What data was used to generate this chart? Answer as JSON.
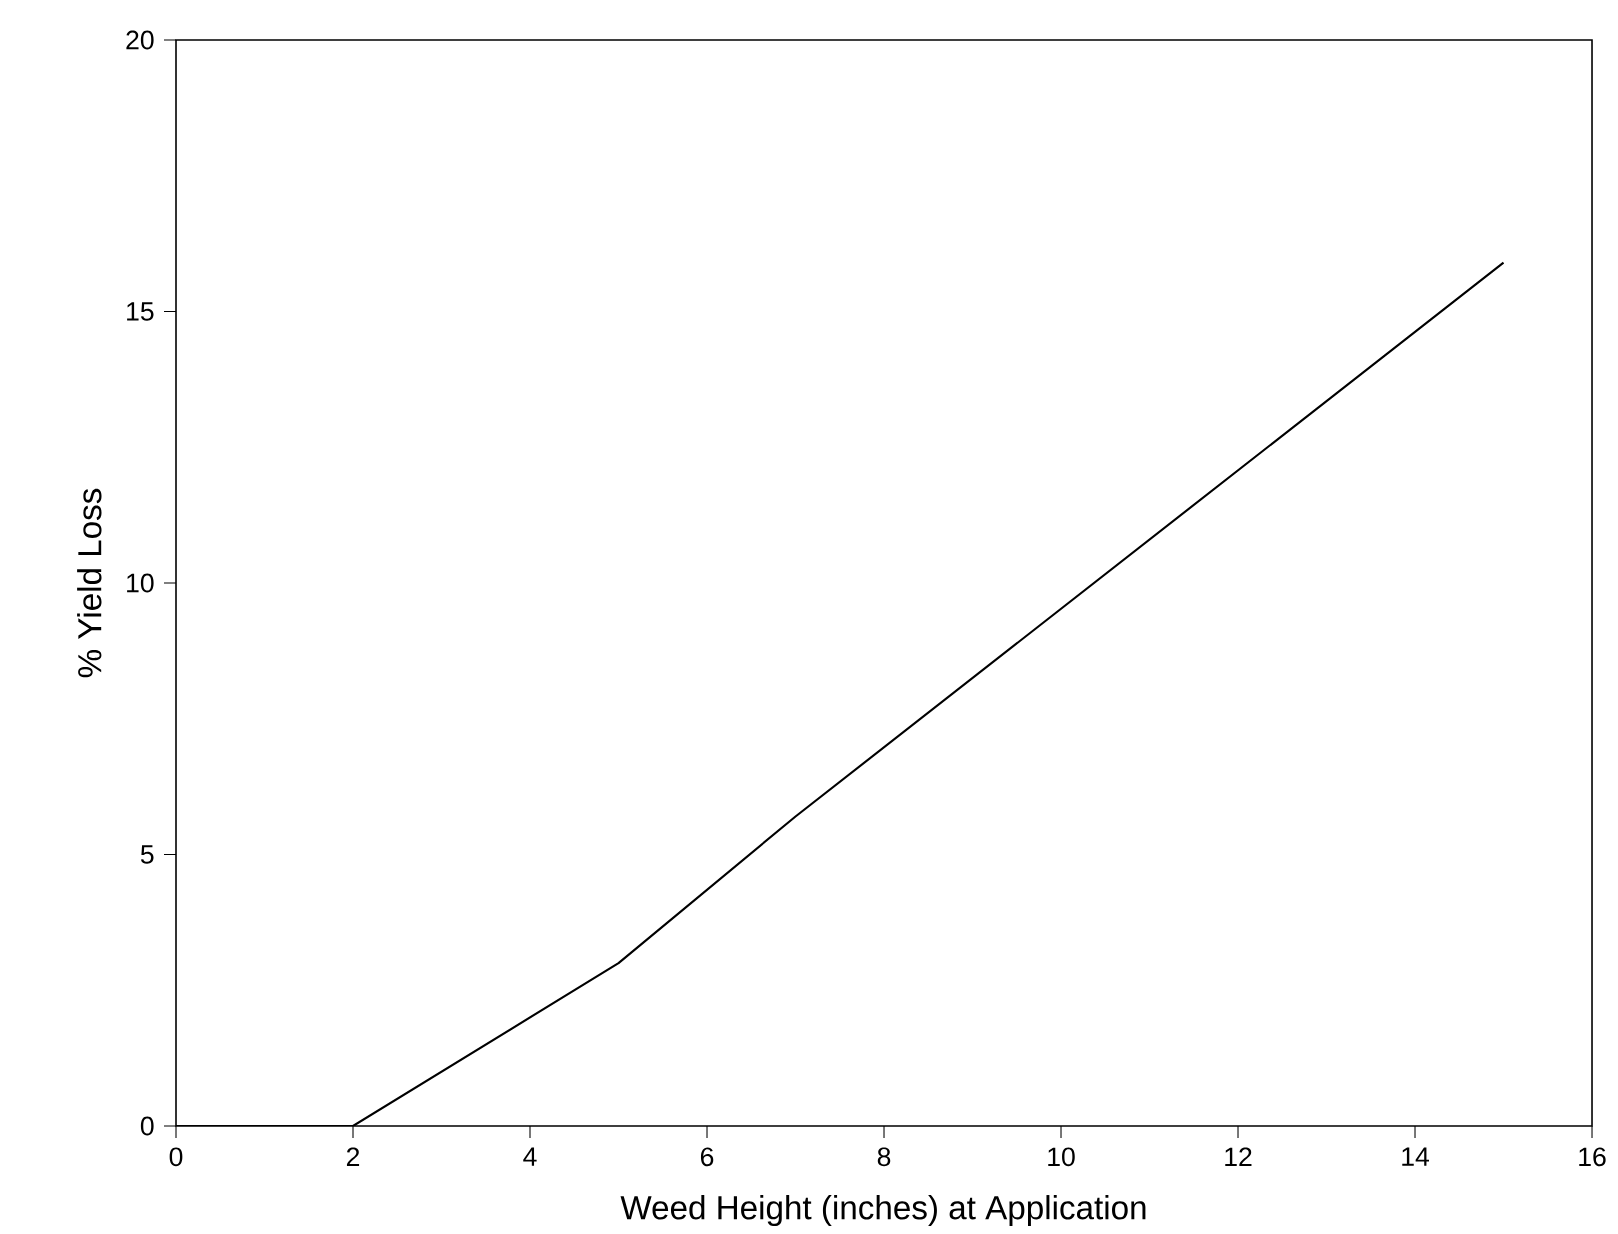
{
  "chart_data": {
    "type": "line",
    "xlabel": "Weed Height (inches) at Application",
    "ylabel": "% Yield Loss",
    "x": [
      0,
      2,
      5,
      7,
      15
    ],
    "series": [
      {
        "color": "#000000",
        "values": [
          0,
          0,
          3,
          5.7,
          15.9
        ]
      }
    ],
    "xlim": [
      0,
      16
    ],
    "xticks": [
      0,
      2,
      4,
      6,
      8,
      10,
      12,
      14,
      16
    ],
    "ylim": [
      0,
      20
    ],
    "yticks": [
      0,
      5,
      10,
      15,
      20
    ],
    "grid": false,
    "marker": "none",
    "line_style": "solid"
  }
}
